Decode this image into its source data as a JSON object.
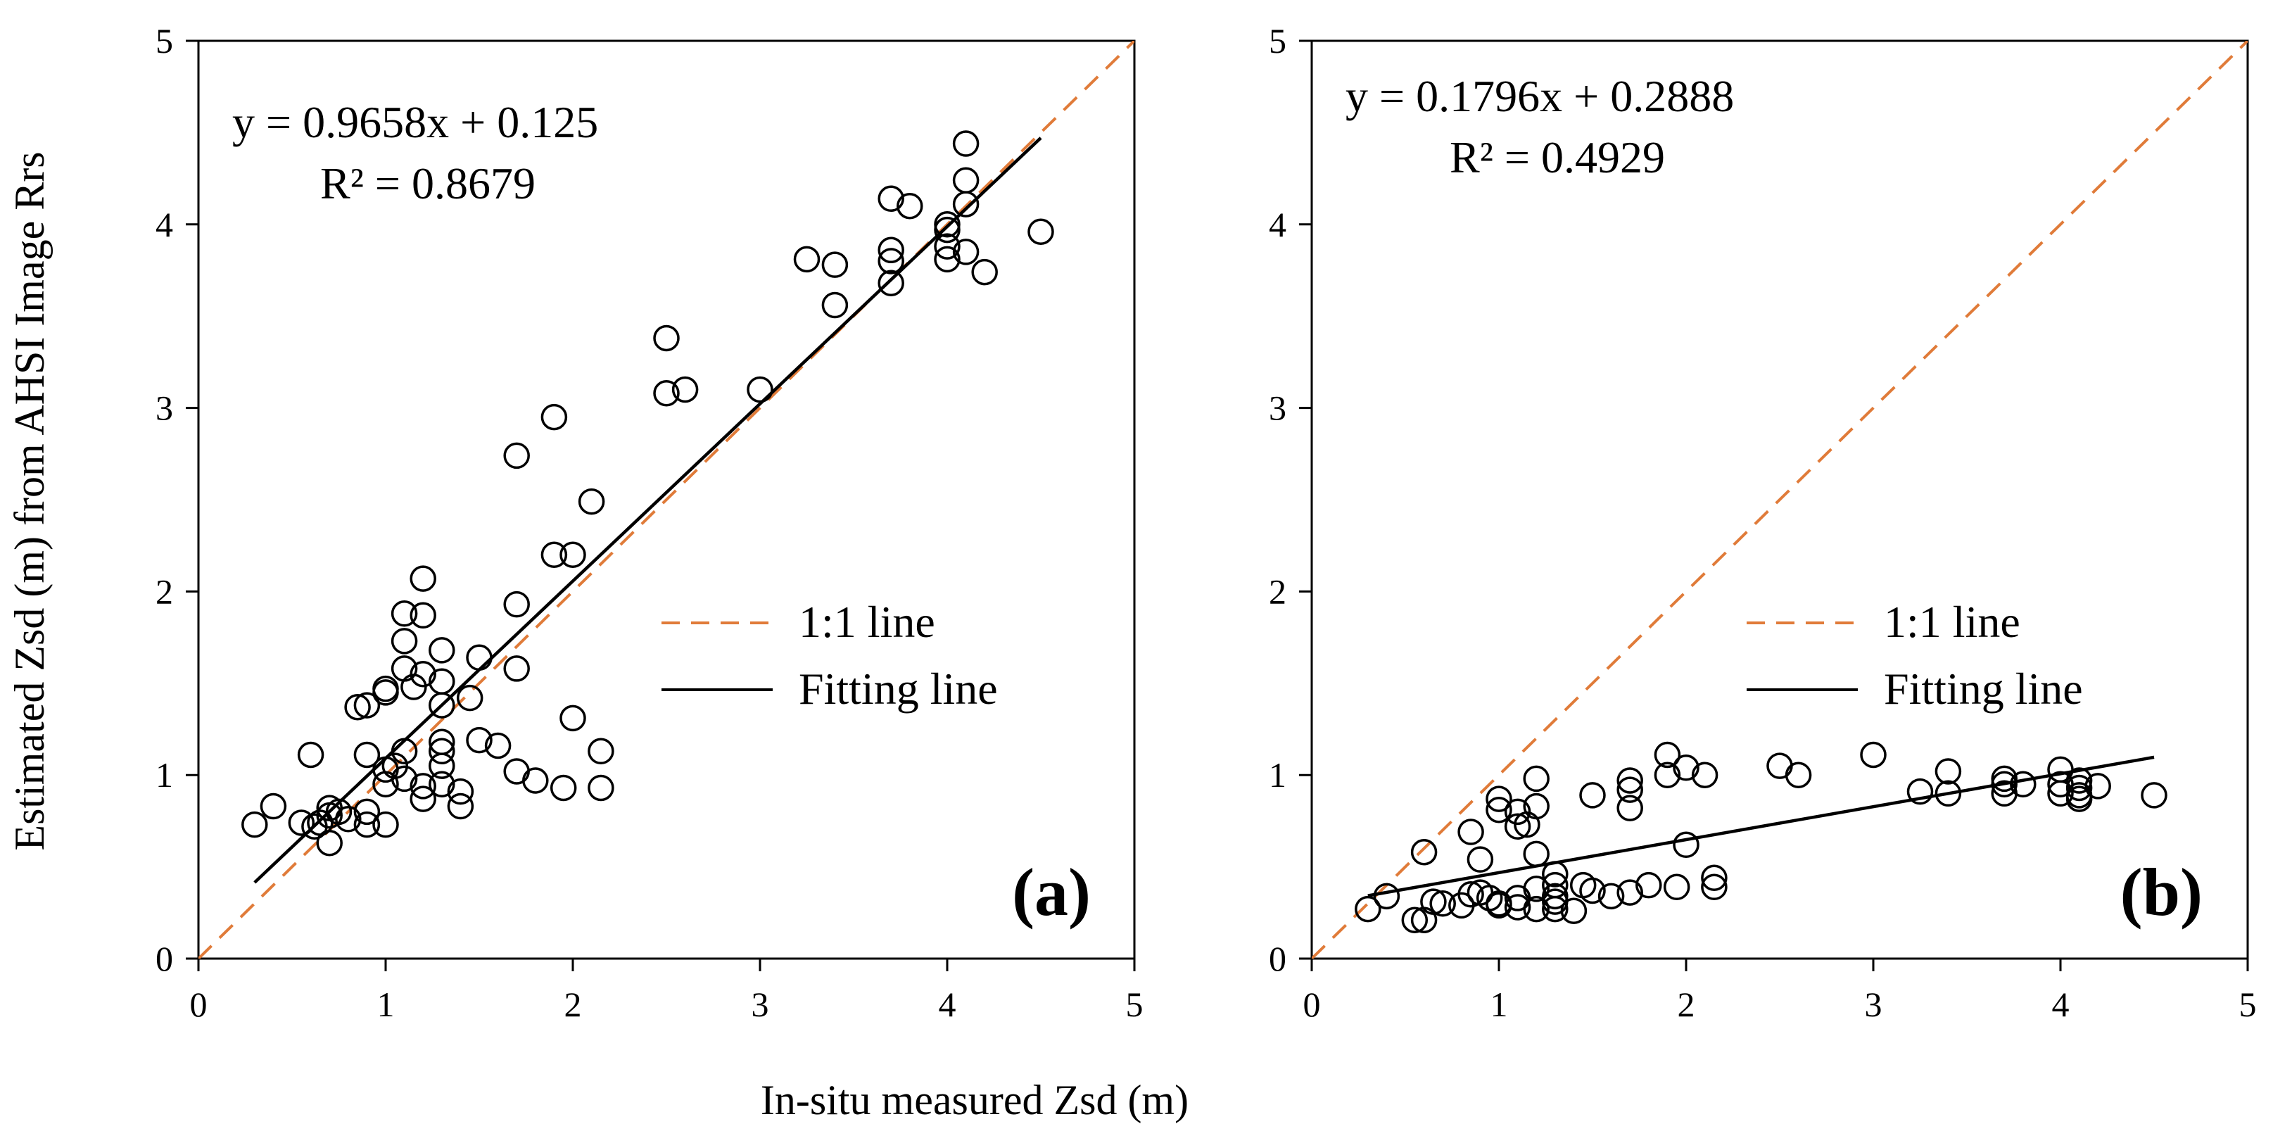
{
  "colors": {
    "one_to_one": "#E07B39",
    "fit": "#000000",
    "marker": "#000000",
    "axis": "#000000"
  },
  "shared_xlabel": "In-situ measured Zsd (m)",
  "shared_ylabel": "Estimated Zsd (m) from AHSI Image Rrs",
  "chart_data": [
    {
      "type": "scatter",
      "panel_label": "(a)",
      "xlim": [
        0,
        5
      ],
      "ylim": [
        0,
        5
      ],
      "xticks": [
        "0",
        "1",
        "2",
        "3",
        "4",
        "5"
      ],
      "yticks": [
        "0",
        "1",
        "2",
        "3",
        "4",
        "5"
      ],
      "equation": "y = 0.9658x + 0.125",
      "r_squared": "R² = 0.8679",
      "legend": {
        "one_to_one": "1:1 line",
        "fit": "Fitting line"
      },
      "fit": {
        "slope": 0.9658,
        "intercept": 0.125,
        "x_range": [
          0.3,
          4.5
        ]
      },
      "one_to_one_range": [
        0,
        5
      ],
      "points": [
        [
          0.3,
          0.73
        ],
        [
          0.4,
          0.83
        ],
        [
          0.55,
          0.74
        ],
        [
          0.6,
          1.11
        ],
        [
          0.62,
          0.72
        ],
        [
          0.65,
          0.74
        ],
        [
          0.7,
          0.78
        ],
        [
          0.7,
          0.82
        ],
        [
          0.7,
          0.63
        ],
        [
          0.75,
          0.8
        ],
        [
          0.8,
          0.76
        ],
        [
          0.85,
          1.37
        ],
        [
          0.9,
          1.38
        ],
        [
          0.9,
          0.8
        ],
        [
          0.9,
          0.73
        ],
        [
          0.9,
          1.11
        ],
        [
          1.0,
          1.45
        ],
        [
          1.0,
          1.47
        ],
        [
          1.0,
          0.95
        ],
        [
          1.0,
          1.03
        ],
        [
          1.0,
          0.73
        ],
        [
          1.05,
          1.05
        ],
        [
          1.1,
          1.88
        ],
        [
          1.1,
          1.73
        ],
        [
          1.1,
          1.58
        ],
        [
          1.1,
          1.13
        ],
        [
          1.1,
          0.98
        ],
        [
          1.15,
          1.48
        ],
        [
          1.2,
          2.07
        ],
        [
          1.2,
          1.87
        ],
        [
          1.2,
          1.55
        ],
        [
          1.2,
          0.94
        ],
        [
          1.2,
          0.87
        ],
        [
          1.3,
          1.68
        ],
        [
          1.3,
          1.51
        ],
        [
          1.3,
          1.38
        ],
        [
          1.3,
          1.18
        ],
        [
          1.3,
          1.13
        ],
        [
          1.3,
          1.05
        ],
        [
          1.3,
          0.95
        ],
        [
          1.4,
          0.91
        ],
        [
          1.4,
          0.83
        ],
        [
          1.45,
          1.42
        ],
        [
          1.5,
          1.64
        ],
        [
          1.5,
          1.19
        ],
        [
          1.6,
          1.16
        ],
        [
          1.7,
          2.74
        ],
        [
          1.7,
          1.93
        ],
        [
          1.7,
          1.58
        ],
        [
          1.7,
          1.02
        ],
        [
          1.8,
          0.97
        ],
        [
          1.9,
          2.95
        ],
        [
          1.9,
          2.2
        ],
        [
          1.95,
          0.93
        ],
        [
          2.0,
          2.2
        ],
        [
          2.0,
          1.31
        ],
        [
          2.1,
          2.49
        ],
        [
          2.15,
          1.13
        ],
        [
          2.15,
          0.93
        ],
        [
          2.5,
          3.38
        ],
        [
          2.5,
          3.08
        ],
        [
          2.6,
          3.1
        ],
        [
          3.0,
          3.1
        ],
        [
          3.25,
          3.81
        ],
        [
          3.4,
          3.78
        ],
        [
          3.4,
          3.56
        ],
        [
          3.7,
          4.14
        ],
        [
          3.7,
          3.86
        ],
        [
          3.7,
          3.8
        ],
        [
          3.7,
          3.68
        ],
        [
          3.8,
          4.1
        ],
        [
          4.0,
          4.0
        ],
        [
          4.0,
          3.97
        ],
        [
          4.0,
          3.88
        ],
        [
          4.0,
          3.81
        ],
        [
          4.1,
          4.44
        ],
        [
          4.1,
          4.24
        ],
        [
          4.1,
          4.11
        ],
        [
          4.1,
          3.85
        ],
        [
          4.2,
          3.74
        ],
        [
          4.5,
          3.96
        ]
      ]
    },
    {
      "type": "scatter",
      "panel_label": "(b)",
      "xlim": [
        0,
        5
      ],
      "ylim": [
        0,
        5
      ],
      "xticks": [
        "0",
        "1",
        "2",
        "3",
        "4",
        "5"
      ],
      "yticks": [
        "0",
        "1",
        "2",
        "3",
        "4",
        "5"
      ],
      "equation": "y = 0.1796x + 0.2888",
      "r_squared": "R² = 0.4929",
      "legend": {
        "one_to_one": "1:1 line",
        "fit": "Fitting line"
      },
      "fit": {
        "slope": 0.1796,
        "intercept": 0.2888,
        "x_range": [
          0.3,
          4.5
        ]
      },
      "one_to_one_range": [
        0,
        5
      ],
      "points": [
        [
          0.3,
          0.27
        ],
        [
          0.4,
          0.34
        ],
        [
          0.55,
          0.21
        ],
        [
          0.6,
          0.58
        ],
        [
          0.6,
          0.21
        ],
        [
          0.65,
          0.31
        ],
        [
          0.7,
          0.3
        ],
        [
          0.8,
          0.29
        ],
        [
          0.85,
          0.69
        ],
        [
          0.85,
          0.35
        ],
        [
          0.9,
          0.54
        ],
        [
          0.9,
          0.36
        ],
        [
          0.95,
          0.33
        ],
        [
          1.0,
          0.87
        ],
        [
          1.0,
          0.81
        ],
        [
          1.0,
          0.3
        ],
        [
          1.0,
          0.29
        ],
        [
          1.1,
          0.8
        ],
        [
          1.1,
          0.72
        ],
        [
          1.1,
          0.33
        ],
        [
          1.1,
          0.28
        ],
        [
          1.15,
          0.73
        ],
        [
          1.2,
          0.98
        ],
        [
          1.2,
          0.83
        ],
        [
          1.2,
          0.57
        ],
        [
          1.2,
          0.38
        ],
        [
          1.2,
          0.27
        ],
        [
          1.3,
          0.46
        ],
        [
          1.3,
          0.4
        ],
        [
          1.3,
          0.34
        ],
        [
          1.3,
          0.31
        ],
        [
          1.3,
          0.27
        ],
        [
          1.4,
          0.26
        ],
        [
          1.45,
          0.4
        ],
        [
          1.5,
          0.89
        ],
        [
          1.5,
          0.37
        ],
        [
          1.6,
          0.34
        ],
        [
          1.7,
          0.97
        ],
        [
          1.7,
          0.92
        ],
        [
          1.7,
          0.82
        ],
        [
          1.7,
          0.36
        ],
        [
          1.8,
          0.4
        ],
        [
          1.9,
          1.11
        ],
        [
          1.9,
          1.0
        ],
        [
          1.95,
          0.39
        ],
        [
          2.0,
          1.04
        ],
        [
          2.0,
          0.62
        ],
        [
          2.1,
          1.0
        ],
        [
          2.15,
          0.44
        ],
        [
          2.15,
          0.39
        ],
        [
          2.5,
          1.05
        ],
        [
          2.6,
          1.0
        ],
        [
          3.0,
          1.11
        ],
        [
          3.25,
          0.91
        ],
        [
          3.4,
          1.02
        ],
        [
          3.4,
          0.9
        ],
        [
          3.7,
          0.98
        ],
        [
          3.7,
          0.95
        ],
        [
          3.7,
          0.9
        ],
        [
          3.8,
          0.95
        ],
        [
          4.0,
          1.03
        ],
        [
          4.0,
          0.95
        ],
        [
          4.0,
          0.9
        ],
        [
          4.1,
          0.97
        ],
        [
          4.1,
          0.93
        ],
        [
          4.1,
          0.89
        ],
        [
          4.1,
          0.87
        ],
        [
          4.2,
          0.94
        ],
        [
          4.5,
          0.89
        ]
      ]
    }
  ]
}
